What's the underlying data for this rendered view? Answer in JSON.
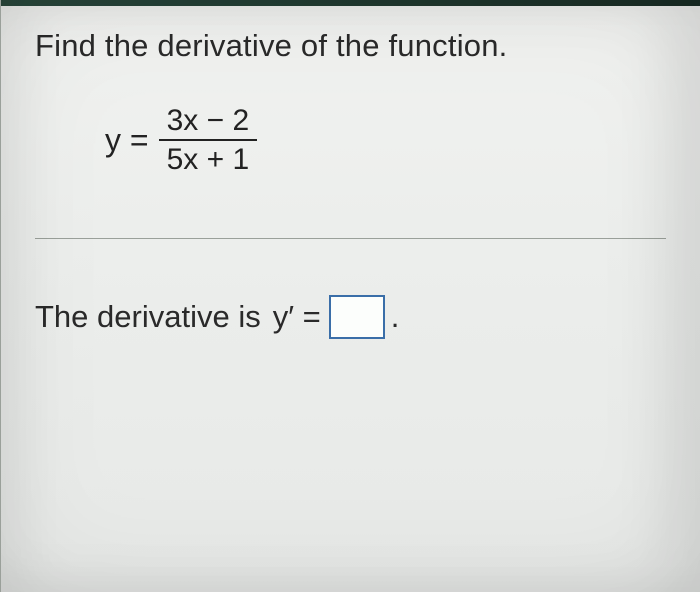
{
  "prompt": "Find the derivative of the function.",
  "equation": {
    "lhs": "y =",
    "numerator": "3x − 2",
    "denominator": "5x + 1"
  },
  "answer": {
    "lead": "The derivative is",
    "lhs": "y′ =",
    "value": "",
    "period": "."
  },
  "style": {
    "input_border": "#3a6ea8",
    "text_color": "#2a2a2a",
    "divider_color": "#9aa09a"
  }
}
